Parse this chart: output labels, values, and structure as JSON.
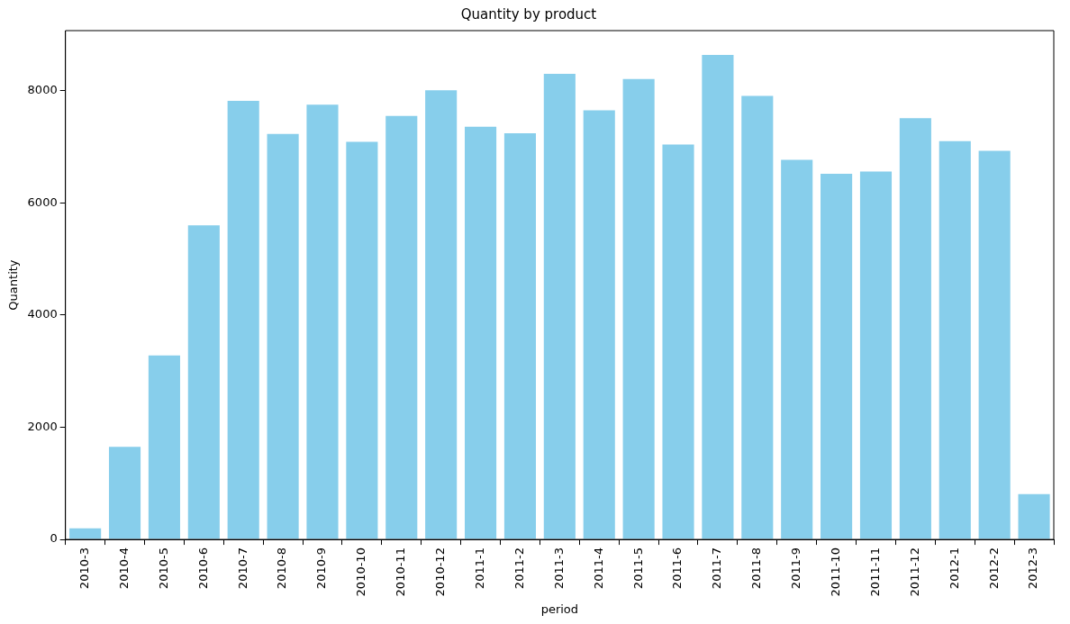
{
  "chart_data": {
    "type": "bar",
    "title": "Quantity by product",
    "xlabel": "period",
    "ylabel": "Quantity",
    "categories": [
      "2010-3",
      "2010-4",
      "2010-5",
      "2010-6",
      "2010-7",
      "2010-8",
      "2010-9",
      "2010-10",
      "2010-11",
      "2010-12",
      "2011-1",
      "2011-2",
      "2011-3",
      "2011-4",
      "2011-5",
      "2011-6",
      "2011-7",
      "2011-8",
      "2011-9",
      "2011-10",
      "2011-11",
      "2011-12",
      "2012-1",
      "2012-2",
      "2012-3"
    ],
    "values": [
      200,
      1650,
      3280,
      5600,
      7820,
      7230,
      7750,
      7090,
      7550,
      8010,
      7360,
      7240,
      8300,
      7650,
      8210,
      7040,
      8640,
      7910,
      6770,
      6520,
      6560,
      7510,
      7100,
      6930,
      810
    ],
    "color": "#87ceeb",
    "ylim": [
      0,
      9072
    ],
    "yticks": [
      0,
      2000,
      4000,
      6000,
      8000
    ]
  }
}
